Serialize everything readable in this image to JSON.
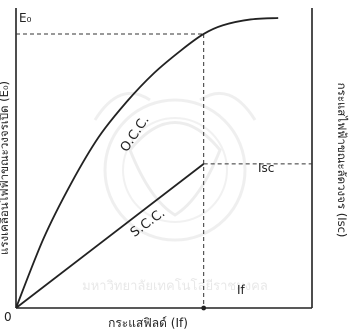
{
  "chart_data": {
    "type": "line",
    "title": "",
    "xlabel": "กระแสฟิลด์ (If)",
    "ylabel_left": "แรงเคลื่อนไฟฟ้าขณะวงจรเปิด (E₀)",
    "ylabel_right": "กระแสไฟฟ้าขณะลัดวงจร (Isc)",
    "origin_label": "0",
    "grid": false,
    "xlim": [
      0,
      1
    ],
    "ylim": [
      0,
      1
    ],
    "series": [
      {
        "name": "O.C.C.",
        "points": [
          [
            0,
            0
          ],
          [
            0.1,
            0.24
          ],
          [
            0.2,
            0.43
          ],
          [
            0.3,
            0.59
          ],
          [
            0.4,
            0.71
          ],
          [
            0.5,
            0.81
          ],
          [
            0.6,
            0.89
          ],
          [
            0.68,
            0.945
          ],
          [
            0.75,
            0.975
          ],
          [
            0.85,
            0.995
          ],
          [
            0.95,
            1.0
          ]
        ]
      },
      {
        "name": "S.C.C.",
        "points": [
          [
            0,
            0
          ],
          [
            0.68,
            0.497
          ]
        ]
      }
    ],
    "markers": {
      "e0": {
        "label": "E₀",
        "x": 0.68,
        "y": 0.945
      },
      "isc": {
        "label": "Isc",
        "x": 0.68,
        "y": 0.497
      },
      "if": {
        "label": "If",
        "x": 0.68
      }
    }
  },
  "watermark": "มหาวิทยาลัยเทคโนโลยีราชมงคล"
}
